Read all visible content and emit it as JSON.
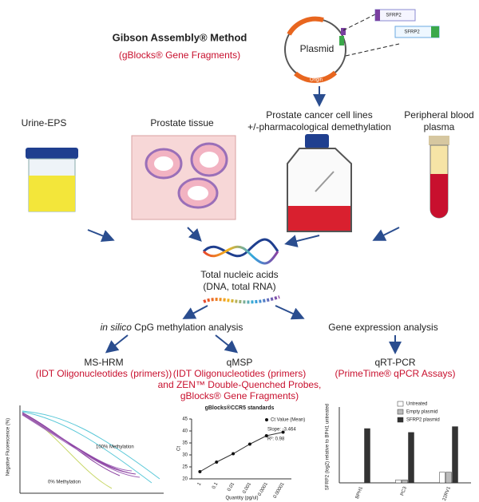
{
  "header": {
    "title": "Gibson Assembly® Method",
    "subtitle": "(gBlocks® Gene Fragments)"
  },
  "plasmid": {
    "label": "Plasmid",
    "origin": "Origin",
    "inserts": [
      "SFRP2",
      "SFRP2"
    ]
  },
  "sources": [
    {
      "lines": [
        "Urine-EPS"
      ]
    },
    {
      "lines": [
        "Prostate tissue"
      ]
    },
    {
      "lines": [
        "Prostate cancer cell lines",
        "+/-pharmacological demethylation"
      ]
    },
    {
      "lines": [
        "Peripheral blood",
        "plasma"
      ]
    }
  ],
  "center": {
    "lines": [
      "Total nucleic acids",
      "(DNA, total RNA)"
    ]
  },
  "branches": [
    {
      "prefix": "in silico",
      "text": " CpG methylation analysis"
    },
    {
      "text": "Gene expression analysis"
    }
  ],
  "methods": [
    {
      "name": "MS-HRM",
      "reagents": [
        "(IDT Oligonucleotides (primers))"
      ]
    },
    {
      "name": "qMSP",
      "reagents": [
        "(IDT Oligonucleotides (primers)",
        "and ZEN™ Double-Quenched Probes,",
        "gBlocks® Gene Fragments)"
      ]
    },
    {
      "name": "qRT-PCR",
      "reagents": [
        "(PrimeTime® qPCR Assays)"
      ]
    }
  ],
  "hrm": {
    "ylabel": "Negative Fluorescence (%)",
    "labels": [
      "100% Methylation",
      "0% Methylation"
    ]
  },
  "standards": {
    "title": "gBlocks®CCR5 standards",
    "xlabel": "Quantity (pg/ul)",
    "ylabel": "Ct",
    "legend": "Ct Value (Mean)",
    "slope": "Slope: -3.464",
    "r2": "R²: 0.98",
    "categories": [
      "1",
      "0.1",
      "0.01",
      "0.001",
      "0.0001",
      "0.00001"
    ],
    "values": [
      23,
      27,
      30.5,
      34.5,
      38,
      39.5
    ],
    "ylim": [
      20,
      45
    ],
    "yticks": [
      20,
      25,
      30,
      35,
      40,
      45
    ]
  },
  "expression": {
    "ylabel": "SFRP2 (log2) relative to BPH1 untreated",
    "categories": [
      "BPH1",
      "PC3",
      "22RV1"
    ],
    "ylim": [
      0,
      7
    ],
    "series": [
      {
        "name": "Untreated",
        "color": "#ffffff",
        "values": [
          0,
          0.3,
          1.1
        ]
      },
      {
        "name": "Empty plasmid",
        "color": "#bbbbbb",
        "values": [
          0,
          0.3,
          1.1
        ]
      },
      {
        "name": "SFRP2 plasmid",
        "color": "#333333",
        "values": [
          5.6,
          5.2,
          5.8
        ]
      }
    ]
  }
}
